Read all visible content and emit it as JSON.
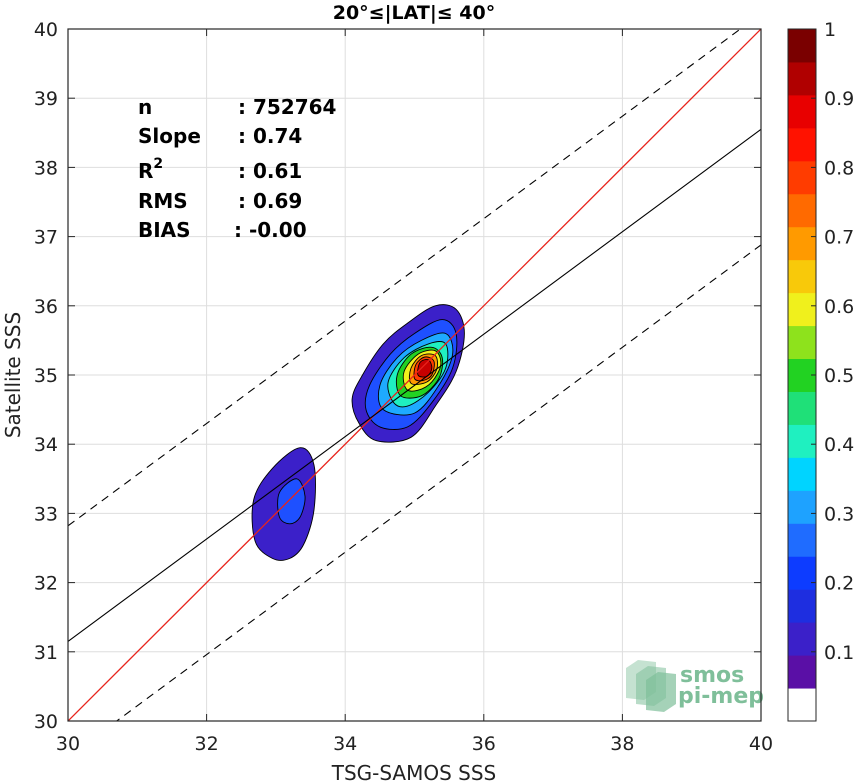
{
  "chart_data": {
    "type": "scatter-density-contour",
    "title": "20°≤|LAT|≤ 40°",
    "xlabel": "TSG-SAMOS SSS",
    "ylabel": "Satellite SSS",
    "xlim": [
      30,
      40
    ],
    "ylim": [
      30,
      40
    ],
    "xticks": [
      "30",
      "32",
      "34",
      "36",
      "38",
      "40"
    ],
    "yticks": [
      "30",
      "31",
      "32",
      "33",
      "34",
      "35",
      "36",
      "37",
      "38",
      "39",
      "40"
    ],
    "grid": true,
    "stats": [
      {
        "label": "n",
        "value": ": 752764"
      },
      {
        "label": "Slope",
        "value": ": 0.74"
      },
      {
        "label": "R",
        "sup": "2",
        "value": ": 0.61"
      },
      {
        "label": "RMS",
        "value": ": 0.69"
      },
      {
        "label": "BIAS",
        "value": ": -0.00"
      }
    ],
    "lines": {
      "one_to_one": {
        "color": "#e8241c",
        "slope": 1,
        "intercept": 0
      },
      "fit": {
        "color": "#000000",
        "x": [
          30,
          40
        ],
        "y": [
          31.15,
          38.55
        ]
      },
      "upper_dashed": {
        "x": [
          30,
          40
        ],
        "y": [
          32.82,
          40.22
        ]
      },
      "lower_dashed": {
        "x": [
          30,
          40
        ],
        "y": [
          29.48,
          36.88
        ]
      }
    },
    "density_clusters": [
      {
        "name": "main",
        "levels": [
          {
            "level": 0.05,
            "points": [
              [
                34.45,
                34.05
              ],
              [
                34.2,
                34.3
              ],
              [
                34.1,
                34.65
              ],
              [
                34.25,
                35.0
              ],
              [
                34.55,
                35.45
              ],
              [
                34.9,
                35.75
              ],
              [
                35.3,
                36.0
              ],
              [
                35.6,
                35.95
              ],
              [
                35.72,
                35.6
              ],
              [
                35.6,
                35.05
              ],
              [
                35.3,
                34.55
              ],
              [
                34.95,
                34.1
              ]
            ]
          },
          {
            "level": 0.15,
            "points": [
              [
                34.5,
                34.25
              ],
              [
                34.3,
                34.5
              ],
              [
                34.35,
                34.85
              ],
              [
                34.65,
                35.3
              ],
              [
                35.0,
                35.6
              ],
              [
                35.4,
                35.8
              ],
              [
                35.6,
                35.6
              ],
              [
                35.55,
                35.1
              ],
              [
                35.25,
                34.6
              ],
              [
                34.9,
                34.25
              ]
            ]
          },
          {
            "level": 0.25,
            "points": [
              [
                34.55,
                34.5
              ],
              [
                34.5,
                34.85
              ],
              [
                34.75,
                35.25
              ],
              [
                35.1,
                35.5
              ],
              [
                35.45,
                35.6
              ],
              [
                35.55,
                35.3
              ],
              [
                35.35,
                34.85
              ],
              [
                35.0,
                34.45
              ]
            ]
          },
          {
            "level": 0.35,
            "points": [
              [
                34.7,
                34.6
              ],
              [
                34.62,
                34.9
              ],
              [
                34.85,
                35.25
              ],
              [
                35.2,
                35.45
              ],
              [
                35.45,
                35.45
              ],
              [
                35.45,
                35.1
              ],
              [
                35.2,
                34.75
              ],
              [
                34.9,
                34.55
              ]
            ]
          },
          {
            "level": 0.45,
            "points": [
              [
                34.8,
                34.7
              ],
              [
                34.75,
                35.0
              ],
              [
                34.95,
                35.3
              ],
              [
                35.25,
                35.4
              ],
              [
                35.4,
                35.25
              ],
              [
                35.35,
                34.95
              ],
              [
                35.1,
                34.7
              ]
            ]
          },
          {
            "level": 0.55,
            "points": [
              [
                34.88,
                34.8
              ],
              [
                34.85,
                35.05
              ],
              [
                35.05,
                35.3
              ],
              [
                35.3,
                35.35
              ],
              [
                35.38,
                35.15
              ],
              [
                35.25,
                34.9
              ],
              [
                35.05,
                34.78
              ]
            ]
          },
          {
            "level": 0.65,
            "points": [
              [
                34.95,
                34.88
              ],
              [
                34.95,
                35.1
              ],
              [
                35.1,
                35.28
              ],
              [
                35.3,
                35.28
              ],
              [
                35.32,
                35.08
              ],
              [
                35.18,
                34.9
              ]
            ]
          },
          {
            "level": 0.75,
            "points": [
              [
                35.0,
                34.95
              ],
              [
                35.02,
                35.15
              ],
              [
                35.15,
                35.26
              ],
              [
                35.28,
                35.2
              ],
              [
                35.25,
                35.0
              ],
              [
                35.12,
                34.92
              ]
            ]
          },
          {
            "level": 0.85,
            "points": [
              [
                35.05,
                35.0
              ],
              [
                35.08,
                35.18
              ],
              [
                35.2,
                35.22
              ],
              [
                35.25,
                35.1
              ],
              [
                35.18,
                34.98
              ]
            ]
          }
        ]
      },
      {
        "name": "secondary",
        "levels": [
          {
            "level": 0.05,
            "points": [
              [
                32.95,
                32.35
              ],
              [
                32.7,
                32.6
              ],
              [
                32.68,
                33.2
              ],
              [
                32.95,
                33.65
              ],
              [
                33.35,
                33.95
              ],
              [
                33.55,
                33.7
              ],
              [
                33.55,
                33.05
              ],
              [
                33.4,
                32.55
              ],
              [
                33.2,
                32.35
              ]
            ]
          },
          {
            "level": 0.15,
            "points": [
              [
                33.05,
                32.95
              ],
              [
                33.05,
                33.3
              ],
              [
                33.3,
                33.5
              ],
              [
                33.42,
                33.25
              ],
              [
                33.35,
                32.95
              ],
              [
                33.2,
                32.85
              ]
            ]
          }
        ]
      }
    ],
    "colorbar": {
      "ticks": [
        "0.1",
        "0.2",
        "0.3",
        "0.4",
        "0.5",
        "0.6",
        "0.7",
        "0.8",
        "0.9",
        "1"
      ],
      "colors": [
        "#ffffff",
        "#5a0fa6",
        "#3b20c9",
        "#1e2ee0",
        "#0d3cff",
        "#1f6cff",
        "#1ea2ff",
        "#00d4ff",
        "#1ff0c0",
        "#1fe078",
        "#22d222",
        "#8ee21c",
        "#f0f01c",
        "#f8c90a",
        "#ff9a00",
        "#ff6a00",
        "#ff3c00",
        "#ff1200",
        "#e80000",
        "#b00000",
        "#7a0000"
      ]
    },
    "level_colors": {
      "0.05": "#3b20c9",
      "0.15": "#1e50ff",
      "0.25": "#1eaaff",
      "0.35": "#1ff0c0",
      "0.45": "#22d222",
      "0.55": "#f0f01c",
      "0.65": "#ff9a00",
      "0.75": "#ff3c00",
      "0.85": "#c80000"
    },
    "watermark": {
      "line1": "smos",
      "line2": "pi-mep",
      "color": "#7fbf9a"
    }
  }
}
